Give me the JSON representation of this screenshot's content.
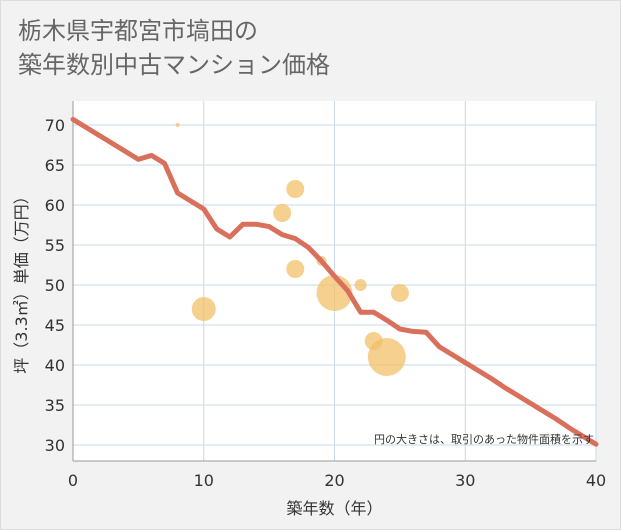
{
  "chart_data": {
    "type": "scatter",
    "title": "栃木県宇都宮市塙田の\n築年数別中古マンション価格",
    "xlabel": "築年数（年）",
    "ylabel": "坪（3.3㎡）単価（万円）",
    "xlim": [
      0,
      40
    ],
    "ylim": [
      28,
      73
    ],
    "xticks": [
      0,
      10,
      20,
      30,
      40
    ],
    "yticks": [
      30,
      35,
      40,
      45,
      50,
      55,
      60,
      65,
      70
    ],
    "grid": true,
    "note": "円の大きさは、取引のあった物件面積を示す",
    "colors": {
      "line": "#d9705b",
      "bubble": "#f2c069",
      "grid": "#c9d9e8",
      "background": "#ffffff"
    },
    "trend_line": {
      "x": [
        0,
        1,
        2,
        3,
        4,
        5,
        6,
        7,
        8,
        9,
        10,
        11,
        12,
        13,
        14,
        15,
        16,
        17,
        18,
        19,
        20,
        21,
        22,
        23,
        24,
        25,
        26,
        27,
        28,
        29,
        30,
        31,
        32,
        33,
        34,
        35,
        36,
        37,
        38,
        39,
        40
      ],
      "y": [
        70.7,
        69.7,
        68.7,
        67.7,
        66.7,
        65.7,
        66.2,
        65.2,
        61.5,
        60.5,
        59.5,
        57.0,
        56.0,
        57.6,
        57.6,
        57.3,
        56.3,
        55.8,
        54.7,
        53.0,
        51.1,
        49.3,
        46.6,
        46.6,
        45.6,
        44.5,
        44.2,
        44.1,
        42.3,
        41.3,
        40.3,
        39.3,
        38.3,
        37.2,
        36.2,
        35.2,
        34.2,
        33.2,
        32.1,
        31.1,
        30.1
      ]
    },
    "bubbles": [
      {
        "x": 8,
        "y": 70,
        "size": 2
      },
      {
        "x": 10,
        "y": 47,
        "size": 12
      },
      {
        "x": 16,
        "y": 59,
        "size": 9
      },
      {
        "x": 17,
        "y": 62,
        "size": 9
      },
      {
        "x": 17,
        "y": 52,
        "size": 9
      },
      {
        "x": 19,
        "y": 53,
        "size": 5
      },
      {
        "x": 20,
        "y": 49,
        "size": 18
      },
      {
        "x": 22,
        "y": 50,
        "size": 6
      },
      {
        "x": 22,
        "y": 46.5,
        "size": 2
      },
      {
        "x": 23,
        "y": 43,
        "size": 9
      },
      {
        "x": 24,
        "y": 41,
        "size": 19
      },
      {
        "x": 25,
        "y": 49,
        "size": 9
      }
    ]
  }
}
